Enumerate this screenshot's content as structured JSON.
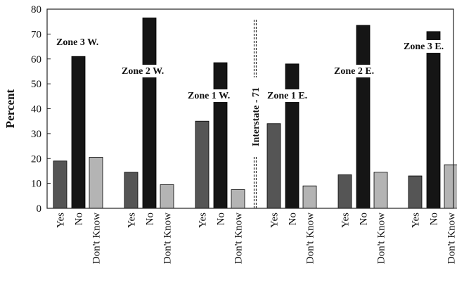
{
  "chart_data": {
    "type": "bar",
    "ylabel": "Percent",
    "xlabel": "",
    "ylim": [
      0,
      80
    ],
    "yticks": [
      0,
      10,
      20,
      30,
      40,
      50,
      60,
      70,
      80
    ],
    "answer_categories": [
      "Yes",
      "No",
      "Don't Know"
    ],
    "groups": [
      {
        "name": "Zone 3 W.",
        "values": [
          19,
          61,
          20.5
        ]
      },
      {
        "name": "Zone 2 W.",
        "values": [
          14.5,
          76.5,
          9.5
        ]
      },
      {
        "name": "Zone 1 W.",
        "values": [
          35,
          58.5,
          7.5
        ]
      },
      {
        "name": "Zone 1 E.",
        "values": [
          34,
          58,
          9
        ]
      },
      {
        "name": "Zone 2 E.",
        "values": [
          13.5,
          73.5,
          14.5
        ]
      },
      {
        "name": "Zone 3 E.",
        "values": [
          13,
          71,
          17.5
        ]
      }
    ],
    "divider": {
      "label": "Interstate - 71",
      "after_group": 2
    },
    "colors": {
      "Yes": "#555555",
      "No": "#151515",
      "Don't Know": "#b4b4b4",
      "axis": "#222222",
      "background": "#ffffff"
    },
    "grid": false,
    "legend": "none"
  }
}
